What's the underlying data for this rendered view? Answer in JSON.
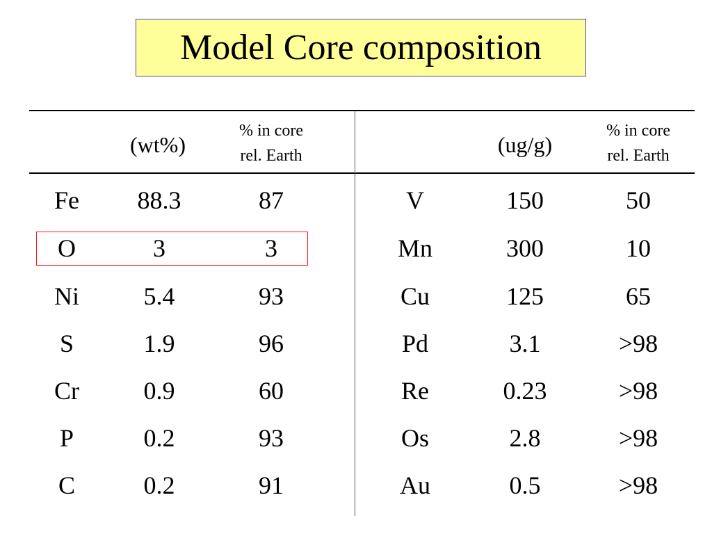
{
  "title": "Model Core composition",
  "left_panel": {
    "unit_header": "(wt%)",
    "ratio_header_line1": "% in core",
    "ratio_header_line2": "rel. Earth",
    "rows": [
      {
        "element": "Fe",
        "value": "88.3",
        "ratio": "87"
      },
      {
        "element": "O",
        "value": "3",
        "ratio": "3"
      },
      {
        "element": "Ni",
        "value": "5.4",
        "ratio": "93"
      },
      {
        "element": "S",
        "value": "1.9",
        "ratio": "96"
      },
      {
        "element": "Cr",
        "value": "0.9",
        "ratio": "60"
      },
      {
        "element": "P",
        "value": "0.2",
        "ratio": "93"
      },
      {
        "element": "C",
        "value": "0.2",
        "ratio": "91"
      }
    ]
  },
  "right_panel": {
    "unit_header": "(ug/g)",
    "ratio_header_line1": "% in core",
    "ratio_header_line2": "rel. Earth",
    "rows": [
      {
        "element": "V",
        "value": "150",
        "ratio": "50"
      },
      {
        "element": "Mn",
        "value": "300",
        "ratio": "10"
      },
      {
        "element": "Cu",
        "value": "125",
        "ratio": "65"
      },
      {
        "element": "Pd",
        "value": "3.1",
        "ratio": ">98"
      },
      {
        "element": "Re",
        "value": "0.23",
        "ratio": ">98"
      },
      {
        "element": "Os",
        "value": "2.8",
        "ratio": ">98"
      },
      {
        "element": "Au",
        "value": "0.5",
        "ratio": ">98"
      }
    ]
  },
  "colors": {
    "title_background": "#ffff99",
    "title_border": "#4a4aa8",
    "highlight_border": "#ff1a1a"
  }
}
